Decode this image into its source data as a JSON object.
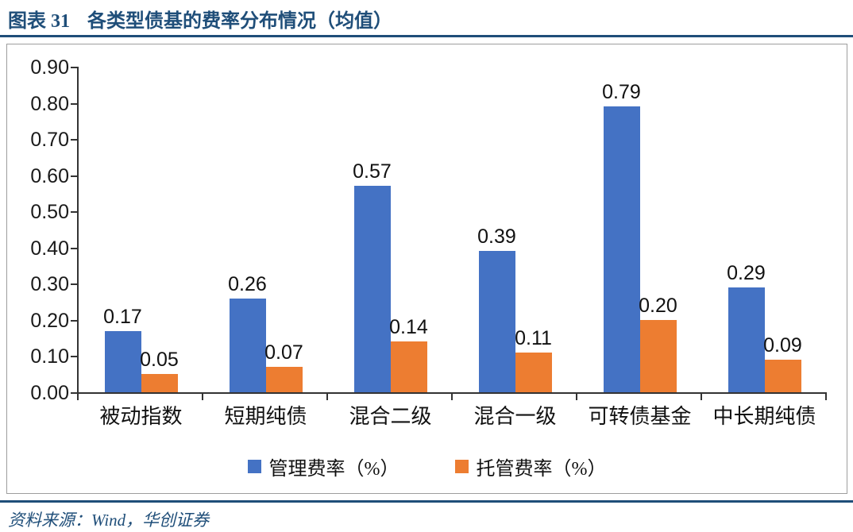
{
  "header": {
    "figure_label": "图表 31",
    "title": "各类型债基的费率分布情况（均值）"
  },
  "chart_data": {
    "type": "bar",
    "categories": [
      "被动指数",
      "短期纯债",
      "混合二级",
      "混合一级",
      "可转债基金",
      "中长期纯债"
    ],
    "series": [
      {
        "name": "管理费率（%）",
        "color": "#4472C4",
        "values": [
          0.17,
          0.26,
          0.57,
          0.39,
          0.79,
          0.29
        ]
      },
      {
        "name": "托管费率（%）",
        "color": "#ED7D31",
        "values": [
          0.05,
          0.07,
          0.14,
          0.11,
          0.2,
          0.09
        ]
      }
    ],
    "data_labels": [
      "0.17",
      "0.05",
      "0.26",
      "0.07",
      "0.57",
      "0.14",
      "0.39",
      "0.11",
      "0.79",
      "0.20",
      "0.29",
      "0.09"
    ],
    "ylim": [
      0.0,
      0.9
    ],
    "ytick_step": 0.1,
    "y_tick_labels": [
      "0.00",
      "0.10",
      "0.20",
      "0.30",
      "0.40",
      "0.50",
      "0.60",
      "0.70",
      "0.80",
      "0.90"
    ],
    "grid": false,
    "legend_position": "bottom"
  },
  "colors": {
    "accent_navy": "#1F4E79",
    "bar_blue": "#4472C4",
    "bar_orange": "#ED7D31"
  },
  "footer": {
    "source": "资料来源：Wind，华创证券"
  }
}
